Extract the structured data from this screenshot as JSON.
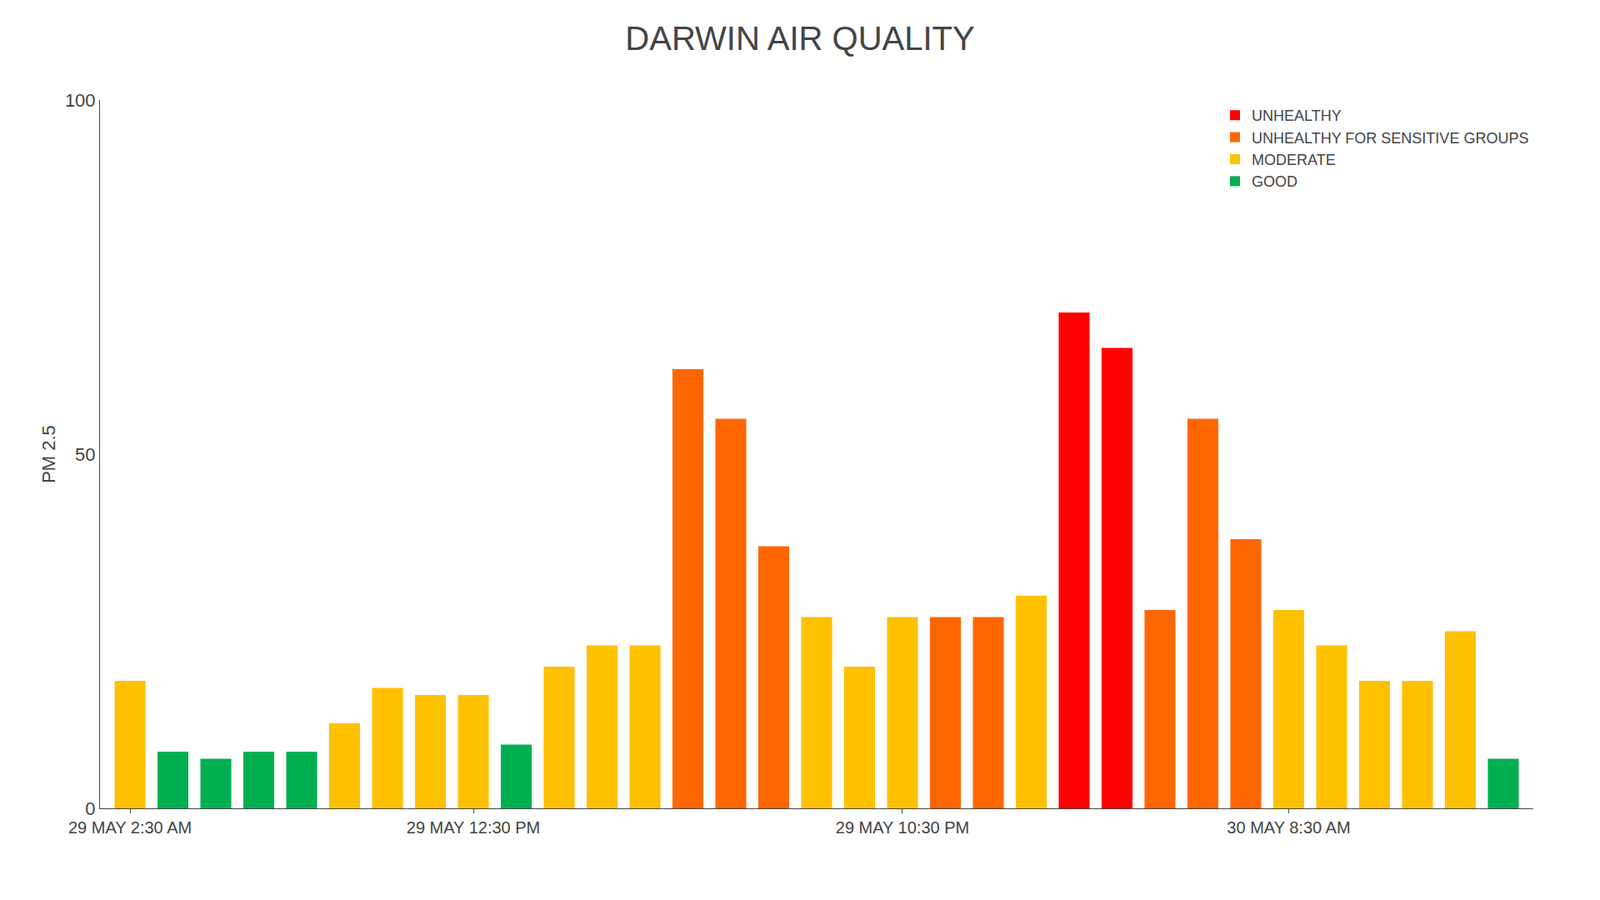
{
  "chart_data": {
    "type": "bar",
    "title": "DARWIN AIR QUALITY",
    "ylabel": "PM 2.5",
    "categories": [
      "29 MAY 2:30 AM",
      null,
      null,
      null,
      null,
      null,
      null,
      null,
      "29 MAY 12:30 PM",
      null,
      null,
      null,
      null,
      null,
      null,
      null,
      null,
      null,
      "29 MAY 10:30 PM",
      null,
      null,
      null,
      null,
      null,
      null,
      null,
      null,
      "30 MAY 8:30 AM",
      null,
      null,
      null,
      null,
      null
    ],
    "series": [
      {
        "name": "UNHEALTHY",
        "color": "#ff0000",
        "values": [
          null,
          null,
          null,
          null,
          null,
          null,
          null,
          null,
          null,
          null,
          null,
          null,
          null,
          null,
          null,
          null,
          null,
          null,
          null,
          null,
          null,
          null,
          70,
          65,
          null,
          null,
          null,
          null,
          null,
          null,
          null,
          null,
          null
        ]
      },
      {
        "name": "UNHEALTHY FOR SENSITIVE GROUPS",
        "color": "#ff6600",
        "values": [
          null,
          null,
          null,
          null,
          null,
          null,
          null,
          null,
          null,
          null,
          null,
          null,
          null,
          62,
          55,
          37,
          null,
          null,
          null,
          27,
          27,
          null,
          null,
          null,
          28,
          55,
          38,
          null,
          null,
          null,
          null,
          null,
          null
        ]
      },
      {
        "name": "MODERATE",
        "color": "#ffc000",
        "values": [
          18,
          null,
          null,
          null,
          null,
          12,
          17,
          16,
          16,
          null,
          20,
          23,
          23,
          null,
          null,
          null,
          27,
          20,
          27,
          null,
          null,
          30,
          null,
          null,
          null,
          null,
          null,
          28,
          23,
          18,
          18,
          25,
          null
        ]
      },
      {
        "name": "GOOD",
        "color": "#00b050",
        "values": [
          null,
          8,
          7,
          8,
          8,
          null,
          null,
          null,
          null,
          9,
          null,
          null,
          null,
          null,
          null,
          null,
          null,
          null,
          null,
          null,
          null,
          null,
          null,
          null,
          null,
          null,
          null,
          null,
          null,
          null,
          null,
          null,
          7
        ]
      }
    ],
    "ylim": [
      0,
      100
    ],
    "yticks": [
      0,
      50,
      100
    ],
    "grid": false,
    "legend": "upper right"
  }
}
